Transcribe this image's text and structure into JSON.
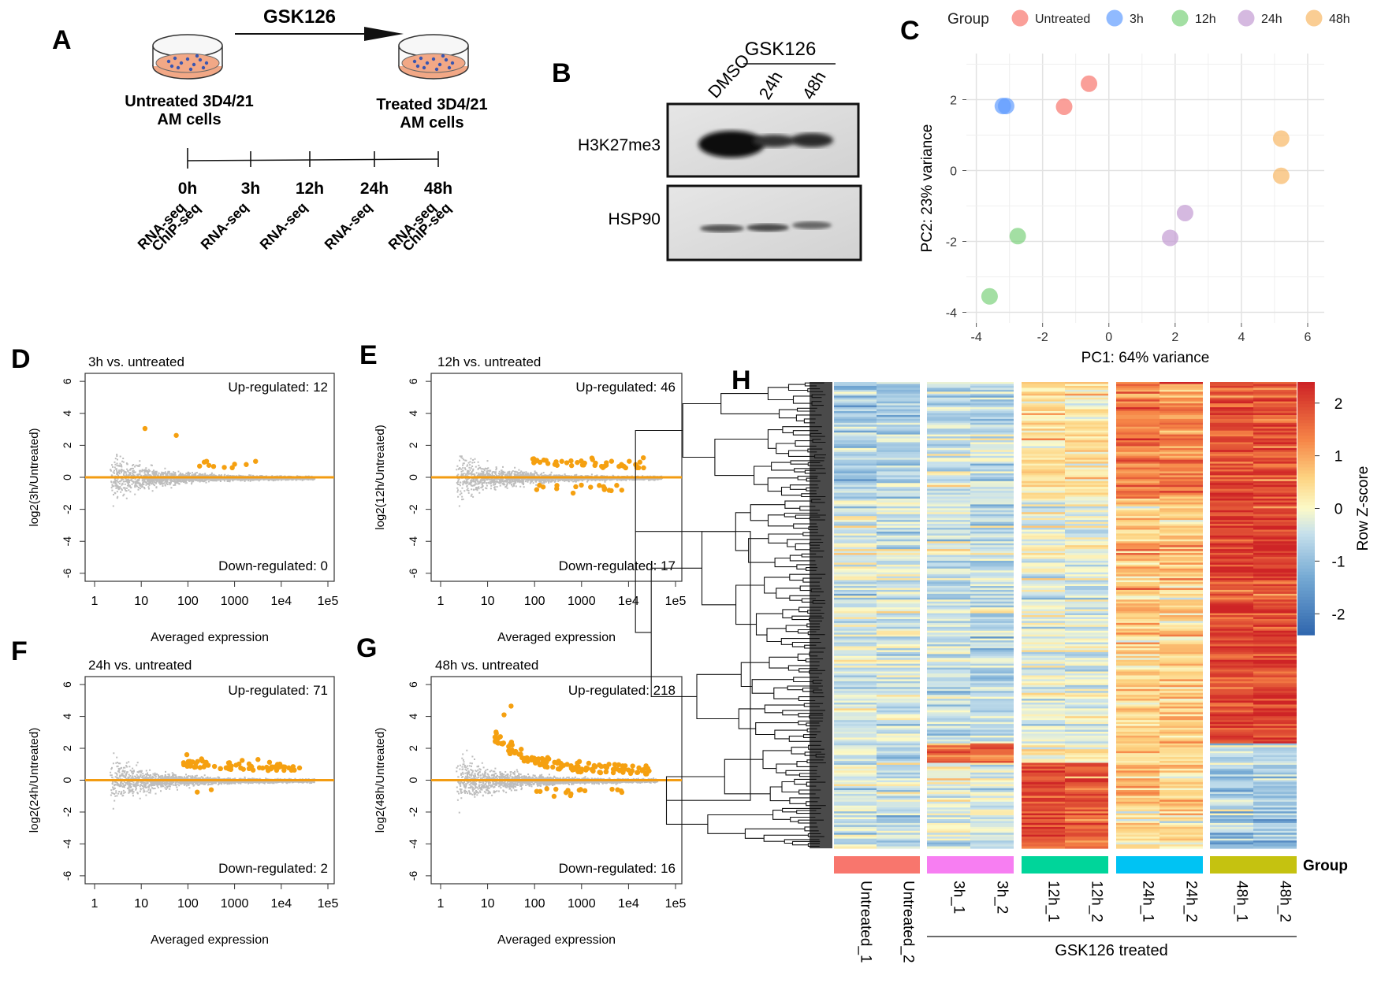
{
  "panels": {
    "a": "A",
    "b": "B",
    "c": "C",
    "d": "D",
    "e": "E",
    "f": "F",
    "g": "G",
    "h": "H"
  },
  "panel_a": {
    "drug": "GSK126",
    "untreated_label_1": "Untreated 3D4/21",
    "untreated_label_2": "AM cells",
    "treated_label_1": "Treated 3D4/21",
    "treated_label_2": "AM cells",
    "timepoints": [
      "0h",
      "3h",
      "12h",
      "24h",
      "48h"
    ],
    "assays": [
      [
        "RNA-seq",
        "ChIP-seq"
      ],
      [
        "RNA-seq"
      ],
      [
        "RNA-seq"
      ],
      [
        "RNA-seq"
      ],
      [
        "RNA-seq",
        "ChIP-seq"
      ]
    ]
  },
  "panel_b": {
    "lanes": [
      "DMSO",
      "24h",
      "48h"
    ],
    "drug": "GSK126",
    "blots": [
      "H3K27me3",
      "HSP90"
    ]
  },
  "chart_data": [
    {
      "id": "C",
      "type": "scatter",
      "title": "",
      "xlabel": "PC1: 64% variance",
      "ylabel": "PC2: 23% variance",
      "xlim": [
        -4.3,
        6.5
      ],
      "ylim": [
        -4.3,
        3.3
      ],
      "xticks": [
        -4,
        -2,
        0,
        2,
        4,
        6
      ],
      "yticks": [
        -4,
        -2,
        0,
        2
      ],
      "legend_title": "Group",
      "series": [
        {
          "name": "Untreated",
          "color": "#f8766d",
          "points": [
            [
              -0.6,
              2.45
            ],
            [
              -1.35,
              1.8
            ]
          ]
        },
        {
          "name": "3h",
          "color": "#619cff",
          "points": [
            [
              -3.1,
              1.82
            ],
            [
              -3.2,
              1.82
            ]
          ]
        },
        {
          "name": "12h",
          "color": "#7cd17c",
          "points": [
            [
              -2.75,
              -1.85
            ],
            [
              -3.6,
              -3.55
            ]
          ]
        },
        {
          "name": "24h",
          "color": "#c39bd3",
          "points": [
            [
              2.3,
              -1.2
            ],
            [
              1.85,
              -1.9
            ]
          ]
        },
        {
          "name": "48h",
          "color": "#f8b865",
          "points": [
            [
              5.2,
              0.9
            ],
            [
              5.2,
              -0.15
            ]
          ]
        }
      ]
    },
    {
      "id": "D",
      "type": "scatter",
      "title": "3h vs. untreated",
      "xlabel": "Averaged expression",
      "ylabel": "log2(3h/Untreated)",
      "xscale": "log",
      "xticks": [
        "1",
        "10",
        "100",
        "1000",
        "1e4",
        "1e5"
      ],
      "yticks": [
        -6,
        -4,
        -2,
        0,
        2,
        4,
        6
      ],
      "ylim": [
        -6.5,
        6.5
      ],
      "up_label": "Up-regulated: 12",
      "down_label": "Down-regulated: 0",
      "up": 12,
      "down": 0,
      "maxx": 4.7,
      "spread": 0.7,
      "yclip": 4.8,
      "highlight_points": [
        [
          1.08,
          3.05
        ],
        [
          1.75,
          2.62
        ],
        [
          2.35,
          0.95
        ],
        [
          2.4,
          1.0
        ],
        [
          2.25,
          0.7
        ],
        [
          2.45,
          0.75
        ],
        [
          2.55,
          0.68
        ],
        [
          2.78,
          0.62
        ],
        [
          3.0,
          0.82
        ],
        [
          3.25,
          0.8
        ],
        [
          3.45,
          1.0
        ],
        [
          2.95,
          0.6
        ]
      ],
      "down_points": []
    },
    {
      "id": "E",
      "type": "scatter",
      "title": "12h vs. untreated",
      "xlabel": "Averaged expression",
      "ylabel": "log2(12h/Untreated)",
      "xscale": "log",
      "xticks": [
        "1",
        "10",
        "100",
        "1000",
        "1e4",
        "1e5"
      ],
      "yticks": [
        -6,
        -4,
        -2,
        0,
        2,
        4,
        6
      ],
      "ylim": [
        -6.5,
        6.5
      ],
      "up_label": "Up-regulated: 46",
      "down_label": "Down-regulated: 17",
      "up": 46,
      "down": 17,
      "maxx": 4.7,
      "spread": 0.7,
      "yclip": 4.8,
      "highlight_points": [],
      "down_points": []
    },
    {
      "id": "F",
      "type": "scatter",
      "title": "24h vs. untreated",
      "xlabel": "Averaged expression",
      "ylabel": "log2(24h/Untreated)",
      "xscale": "log",
      "xticks": [
        "1",
        "10",
        "100",
        "1000",
        "1e4",
        "1e5"
      ],
      "yticks": [
        -6,
        -4,
        -2,
        0,
        2,
        4,
        6
      ],
      "ylim": [
        -6.5,
        6.5
      ],
      "up_label": "Up-regulated: 71",
      "down_label": "Down-regulated: 2",
      "up": 71,
      "down": 2,
      "maxx": 4.7,
      "spread": 0.7,
      "yclip": 4.6,
      "highlight_points": [],
      "down_points": [
        [
          2.2,
          -0.75
        ],
        [
          2.5,
          -0.6
        ]
      ]
    },
    {
      "id": "G",
      "type": "scatter",
      "title": "48h vs. untreated",
      "xlabel": "Averaged expression",
      "ylabel": "log2(48h/Untreated)",
      "xscale": "log",
      "xticks": [
        "1",
        "10",
        "100",
        "1000",
        "1e4",
        "1e5"
      ],
      "yticks": [
        -6,
        -4,
        -2,
        0,
        2,
        4,
        6
      ],
      "ylim": [
        -6.5,
        6.5
      ],
      "up_label": "Up-regulated: 218",
      "down_label": "Down-regulated: 16",
      "up": 218,
      "down": 16,
      "maxx": 4.6,
      "spread": 0.8,
      "yclip": 4.8,
      "highlight_points": [
        [
          1.5,
          4.65
        ],
        [
          1.35,
          4.1
        ],
        [
          1.2,
          2.4
        ]
      ],
      "down_points": []
    },
    {
      "id": "H",
      "type": "heatmap",
      "columns": [
        "Untreated_1",
        "Untreated_2",
        "3h_1",
        "3h_2",
        "12h_1",
        "12h_2",
        "24h_1",
        "24h_2",
        "48h_1",
        "48h_2"
      ],
      "group_colors": [
        "#f8766d",
        "#f77ef2",
        "#00d59a",
        "#00c3f3",
        "#c5c210"
      ],
      "group_label": "Group",
      "treated_label": "GSK126 treated",
      "colorbar_title": "Row Z-score",
      "colorbar_ticks": [
        2,
        1,
        0,
        -1,
        -2
      ],
      "zlim": [
        -2.4,
        2.4
      ],
      "rows": 240
    }
  ]
}
